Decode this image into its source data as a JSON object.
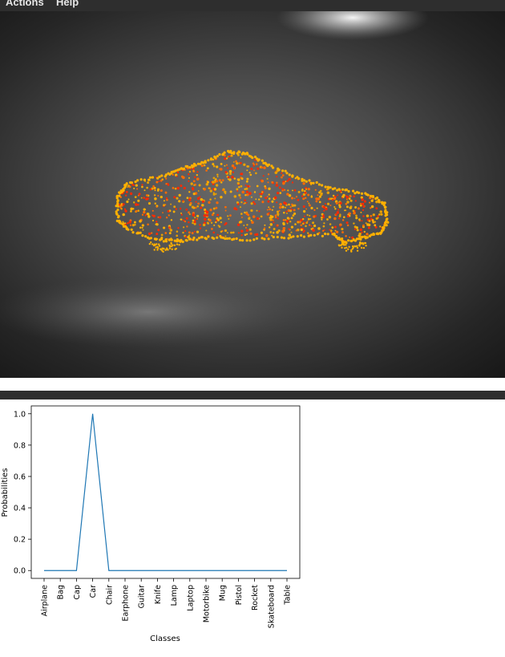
{
  "menubar": {
    "items": [
      {
        "label": "Actions"
      },
      {
        "label": "Help"
      }
    ]
  },
  "viewport": {
    "object_colors": [
      "#ffb000",
      "#ff6a00",
      "#ff2a00",
      "#e8a000"
    ],
    "background_color": "#3c3c3c"
  },
  "chart_data": {
    "type": "line",
    "title": "",
    "xlabel": "Classes",
    "ylabel": "Probabilities",
    "categories": [
      "Airplane",
      "Bag",
      "Cap",
      "Car",
      "Chair",
      "Earphone",
      "Guitar",
      "Knife",
      "Lamp",
      "Laptop",
      "Motorbike",
      "Mug",
      "Pistol",
      "Rocket",
      "Skateboard",
      "Table"
    ],
    "values": [
      0,
      0,
      0,
      1.0,
      0,
      0,
      0,
      0,
      0,
      0,
      0,
      0,
      0,
      0,
      0,
      0
    ],
    "ylim": [
      -0.05,
      1.05
    ],
    "yticks": [
      "0.0",
      "0.2",
      "0.4",
      "0.6",
      "0.8",
      "1.0"
    ],
    "line_color": "#1f77b4",
    "grid": false
  }
}
